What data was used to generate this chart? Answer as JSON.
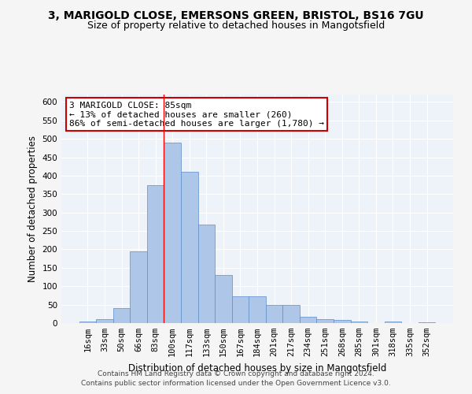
{
  "title_line1": "3, MARIGOLD CLOSE, EMERSONS GREEN, BRISTOL, BS16 7GU",
  "title_line2": "Size of property relative to detached houses in Mangotsfield",
  "xlabel": "Distribution of detached houses by size in Mangotsfield",
  "ylabel": "Number of detached properties",
  "categories": [
    "16sqm",
    "33sqm",
    "50sqm",
    "66sqm",
    "83sqm",
    "100sqm",
    "117sqm",
    "133sqm",
    "150sqm",
    "167sqm",
    "184sqm",
    "201sqm",
    "217sqm",
    "234sqm",
    "251sqm",
    "268sqm",
    "285sqm",
    "301sqm",
    "318sqm",
    "335sqm",
    "352sqm"
  ],
  "values": [
    5,
    10,
    40,
    195,
    375,
    490,
    410,
    268,
    130,
    72,
    72,
    50,
    50,
    18,
    10,
    8,
    5,
    0,
    5,
    0,
    2
  ],
  "bar_color": "#aec6e8",
  "bar_edge_color": "#5b8dc8",
  "bar_width": 1.0,
  "red_line_x": 4.5,
  "annotation_text": "3 MARIGOLD CLOSE: 85sqm\n← 13% of detached houses are smaller (260)\n86% of semi-detached houses are larger (1,780) →",
  "annotation_box_color": "#ffffff",
  "annotation_box_edge_color": "#cc0000",
  "ylim": [
    0,
    620
  ],
  "yticks": [
    0,
    50,
    100,
    150,
    200,
    250,
    300,
    350,
    400,
    450,
    500,
    550,
    600
  ],
  "footnote1": "Contains HM Land Registry data © Crown copyright and database right 2024.",
  "footnote2": "Contains public sector information licensed under the Open Government Licence v3.0.",
  "bg_color": "#eef2f9",
  "grid_color": "#ffffff",
  "fig_bg_color": "#f5f5f5",
  "title_fontsize": 10,
  "subtitle_fontsize": 9,
  "axis_label_fontsize": 8.5,
  "tick_fontsize": 7.5,
  "annotation_fontsize": 8,
  "footnote_fontsize": 6.5
}
